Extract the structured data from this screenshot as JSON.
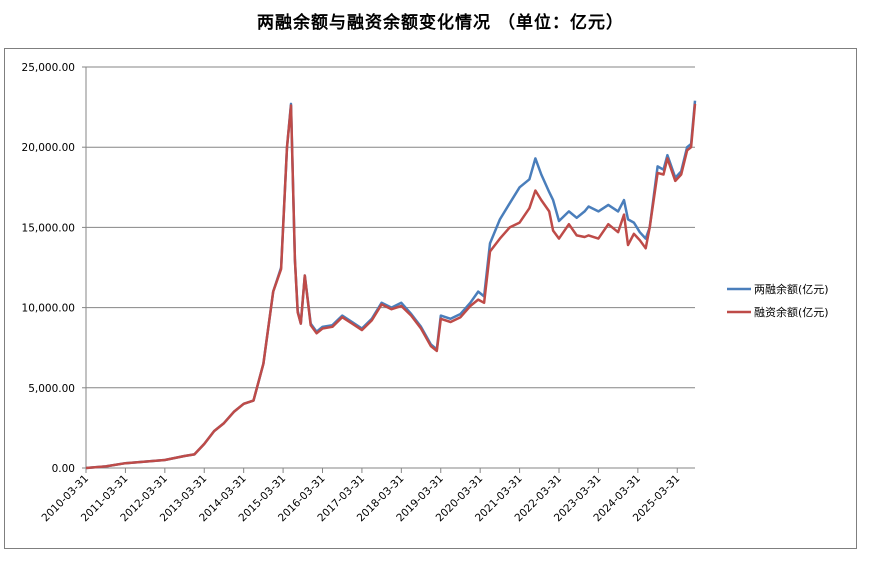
{
  "chart_data": {
    "type": "line",
    "title": "两融余额与融资余额变化情况 （单位：亿元）",
    "xlabel": "",
    "ylabel": "",
    "ylim": [
      0,
      25000
    ],
    "yticks": [
      "0.00",
      "5,000.00",
      "10,000.00",
      "15,000.00",
      "20,000.00",
      "25,000.00"
    ],
    "ytick_values": [
      0,
      5000,
      10000,
      15000,
      20000,
      25000
    ],
    "xticks": [
      "2010-03-31",
      "2011-03-31",
      "2012-03-31",
      "2013-03-31",
      "2014-03-31",
      "2015-03-31",
      "2016-03-31",
      "2017-03-31",
      "2018-03-31",
      "2019-03-31",
      "2020-03-31",
      "2021-03-31",
      "2022-03-31",
      "2023-03-31",
      "2024-03-31",
      "2025-03-31"
    ],
    "xlim": [
      2010.25,
      2025.7
    ],
    "grid": "horizontal",
    "legend_position": "right",
    "series": [
      {
        "name": "两融余额(亿元)",
        "color": "#4a7ebb",
        "x": [
          2010.25,
          2010.75,
          2011.25,
          2011.75,
          2012.25,
          2012.75,
          2013.0,
          2013.25,
          2013.5,
          2013.75,
          2014.0,
          2014.25,
          2014.5,
          2014.75,
          2015.0,
          2015.2,
          2015.35,
          2015.45,
          2015.55,
          2015.62,
          2015.7,
          2015.8,
          2015.95,
          2016.1,
          2016.25,
          2016.5,
          2016.75,
          2017.0,
          2017.25,
          2017.5,
          2017.75,
          2018.0,
          2018.25,
          2018.5,
          2018.75,
          2019.0,
          2019.15,
          2019.25,
          2019.5,
          2019.75,
          2020.0,
          2020.2,
          2020.35,
          2020.5,
          2020.75,
          2021.0,
          2021.25,
          2021.5,
          2021.65,
          2021.8,
          2022.0,
          2022.1,
          2022.25,
          2022.5,
          2022.7,
          2022.9,
          2023.0,
          2023.25,
          2023.5,
          2023.75,
          2023.9,
          2024.0,
          2024.15,
          2024.3,
          2024.45,
          2024.55,
          2024.75,
          2024.9,
          2025.0,
          2025.2,
          2025.35,
          2025.5,
          2025.6,
          2025.7
        ],
        "y": [
          0,
          100,
          300,
          400,
          500,
          750,
          850,
          1500,
          2300,
          2800,
          3500,
          4000,
          4200,
          6500,
          11000,
          12500,
          20000,
          22700,
          13000,
          9800,
          9000,
          12000,
          9000,
          8500,
          8800,
          8900,
          9500,
          9100,
          8700,
          9300,
          10300,
          10000,
          10300,
          9600,
          8800,
          7700,
          7400,
          9500,
          9300,
          9600,
          10300,
          11000,
          10700,
          14000,
          15500,
          16500,
          17500,
          18000,
          19300,
          18300,
          17200,
          16700,
          15400,
          16000,
          15600,
          16000,
          16300,
          16000,
          16400,
          16000,
          16700,
          15500,
          15300,
          14700,
          14300,
          15000,
          18800,
          18600,
          19500,
          18100,
          18500,
          20000,
          20200,
          22900
        ]
      },
      {
        "name": "融资余额(亿元)",
        "color": "#be4b48",
        "x": [
          2010.25,
          2010.75,
          2011.25,
          2011.75,
          2012.25,
          2012.75,
          2013.0,
          2013.25,
          2013.5,
          2013.75,
          2014.0,
          2014.25,
          2014.5,
          2014.75,
          2015.0,
          2015.2,
          2015.35,
          2015.45,
          2015.55,
          2015.62,
          2015.7,
          2015.8,
          2015.95,
          2016.1,
          2016.25,
          2016.5,
          2016.75,
          2017.0,
          2017.25,
          2017.5,
          2017.75,
          2018.0,
          2018.25,
          2018.5,
          2018.75,
          2019.0,
          2019.15,
          2019.25,
          2019.5,
          2019.75,
          2020.0,
          2020.2,
          2020.35,
          2020.5,
          2020.75,
          2021.0,
          2021.25,
          2021.5,
          2021.65,
          2021.8,
          2022.0,
          2022.1,
          2022.25,
          2022.5,
          2022.7,
          2022.9,
          2023.0,
          2023.25,
          2023.5,
          2023.75,
          2023.9,
          2024.0,
          2024.15,
          2024.3,
          2024.45,
          2024.55,
          2024.75,
          2024.9,
          2025.0,
          2025.2,
          2025.35,
          2025.5,
          2025.6,
          2025.7
        ],
        "y": [
          0,
          100,
          300,
          400,
          500,
          750,
          850,
          1500,
          2300,
          2800,
          3500,
          4000,
          4200,
          6500,
          11000,
          12400,
          20000,
          22600,
          13000,
          9700,
          9000,
          12000,
          8900,
          8400,
          8700,
          8800,
          9400,
          9000,
          8600,
          9200,
          10200,
          9900,
          10100,
          9500,
          8700,
          7600,
          7300,
          9300,
          9100,
          9400,
          10100,
          10500,
          10300,
          13500,
          14300,
          15000,
          15300,
          16200,
          17300,
          16700,
          16000,
          14800,
          14300,
          15200,
          14500,
          14400,
          14500,
          14300,
          15200,
          14700,
          15800,
          13900,
          14600,
          14200,
          13700,
          15000,
          18400,
          18300,
          19300,
          17900,
          18300,
          19800,
          20000,
          22700
        ]
      }
    ]
  }
}
